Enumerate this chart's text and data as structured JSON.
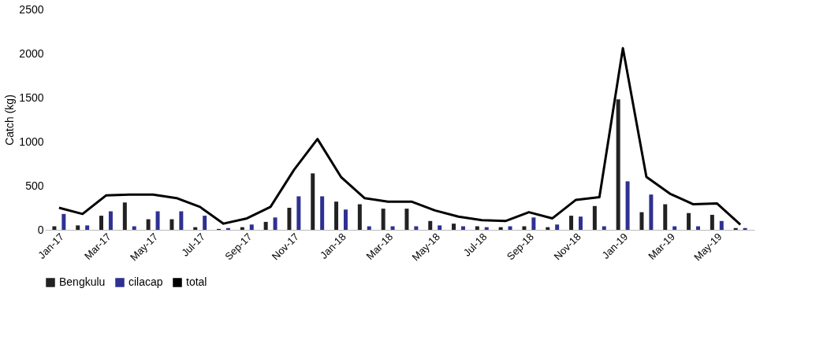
{
  "chart_data": {
    "type": "bar",
    "ylabel": "Catch (kg)",
    "categories": [
      "Jan-17",
      null,
      "Mar-17",
      null,
      "May-17",
      null,
      "Jul-17",
      null,
      "Sep-17",
      null,
      "Nov-17",
      null,
      "Jan-18",
      null,
      "Mar-18",
      null,
      "May-18",
      null,
      "Jul-18",
      null,
      "Sep-18",
      null,
      "Nov-18",
      null,
      "Jan-19",
      null,
      "Mar-19",
      null,
      "May-19",
      null
    ],
    "series": [
      {
        "name": "Bengkulu",
        "color": "#222222",
        "values": [
          40,
          50,
          160,
          310,
          120,
          120,
          30,
          10,
          30,
          90,
          250,
          640,
          320,
          290,
          240,
          240,
          100,
          70,
          40,
          30,
          40,
          30,
          160,
          270,
          1480,
          200,
          290,
          190,
          170,
          20
        ]
      },
      {
        "name": "cilacap",
        "color": "#2e3192",
        "values": [
          180,
          50,
          210,
          40,
          210,
          210,
          160,
          20,
          60,
          140,
          380,
          380,
          230,
          40,
          40,
          40,
          50,
          40,
          30,
          40,
          140,
          60,
          150,
          40,
          550,
          400,
          40,
          40,
          100,
          20
        ]
      },
      {
        "name": "total",
        "type": "line",
        "color": "#000000",
        "values": [
          250,
          180,
          390,
          400,
          400,
          360,
          260,
          70,
          130,
          260,
          680,
          1030,
          600,
          360,
          320,
          320,
          220,
          150,
          110,
          100,
          200,
          130,
          340,
          370,
          2060,
          600,
          410,
          290,
          300,
          60
        ]
      }
    ],
    "ylim": [
      0,
      2500
    ],
    "yticks": [
      0,
      500,
      1000,
      1500,
      2000,
      2500
    ],
    "grid": false,
    "legend": "bottom"
  }
}
